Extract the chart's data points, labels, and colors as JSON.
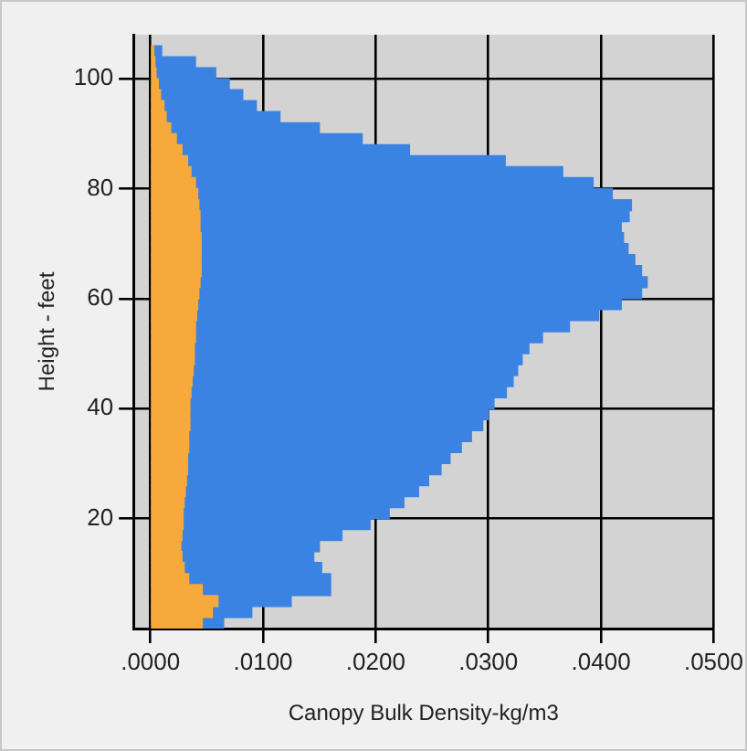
{
  "chart_data": {
    "type": "bar",
    "orientation": "horizontal",
    "stacked": true,
    "xlabel": "Canopy Bulk Density-kg/m3",
    "ylabel": "Height - feet",
    "x": [
      1,
      3,
      5,
      7,
      9,
      11,
      13,
      15,
      17,
      19,
      21,
      23,
      25,
      27,
      29,
      31,
      33,
      35,
      37,
      39,
      41,
      43,
      45,
      47,
      49,
      51,
      53,
      55,
      57,
      59,
      61,
      63,
      65,
      67,
      69,
      71,
      73,
      75,
      77,
      79,
      81,
      83,
      85,
      87,
      89,
      91,
      93,
      95,
      97,
      99,
      101,
      103,
      105
    ],
    "series": [
      {
        "color": "#f7a93b",
        "values": [
          0.0046,
          0.0055,
          0.006,
          0.0046,
          0.0034,
          0.003,
          0.0028,
          0.0027,
          0.0028,
          0.0029,
          0.0029,
          0.003,
          0.0031,
          0.0032,
          0.0033,
          0.0033,
          0.0034,
          0.0034,
          0.0035,
          0.0035,
          0.0035,
          0.0036,
          0.0037,
          0.0038,
          0.0039,
          0.0039,
          0.004,
          0.004,
          0.0041,
          0.0042,
          0.0043,
          0.0044,
          0.0045,
          0.0045,
          0.0045,
          0.0045,
          0.0044,
          0.0044,
          0.0043,
          0.0042,
          0.004,
          0.0036,
          0.0033,
          0.0028,
          0.0023,
          0.0018,
          0.0014,
          0.0012,
          0.0009,
          0.0007,
          0.0005,
          0.0004,
          0.0003
        ]
      },
      {
        "color": "#3b83e3",
        "values": [
          0.0019,
          0.0035,
          0.0065,
          0.0114,
          0.0126,
          0.0122,
          0.0117,
          0.0123,
          0.0142,
          0.0166,
          0.0183,
          0.0195,
          0.0207,
          0.0215,
          0.0225,
          0.0233,
          0.0242,
          0.0251,
          0.026,
          0.0265,
          0.027,
          0.028,
          0.0285,
          0.0288,
          0.0291,
          0.0297,
          0.0308,
          0.0332,
          0.0357,
          0.0376,
          0.0393,
          0.0397,
          0.0391,
          0.0385,
          0.0379,
          0.0375,
          0.0374,
          0.0381,
          0.0384,
          0.0368,
          0.0353,
          0.033,
          0.0282,
          0.0202,
          0.0165,
          0.0132,
          0.0101,
          0.0082,
          0.0073,
          0.0063,
          0.0053,
          0.0036,
          0.0007
        ]
      }
    ],
    "xlim": [
      -0.0015,
      0.05
    ],
    "xticks": [
      {
        "value": 0,
        "label": ".0000"
      },
      {
        "value": 0.01,
        "label": ".0100"
      },
      {
        "value": 0.02,
        "label": ".0200"
      },
      {
        "value": 0.03,
        "label": ".0300"
      },
      {
        "value": 0.04,
        "label": ".0400"
      },
      {
        "value": 0.05,
        "label": ".0500"
      }
    ],
    "ylim": [
      0,
      108
    ],
    "yticks": [
      20,
      40,
      60,
      80,
      100
    ],
    "grid": true,
    "legend": false
  }
}
